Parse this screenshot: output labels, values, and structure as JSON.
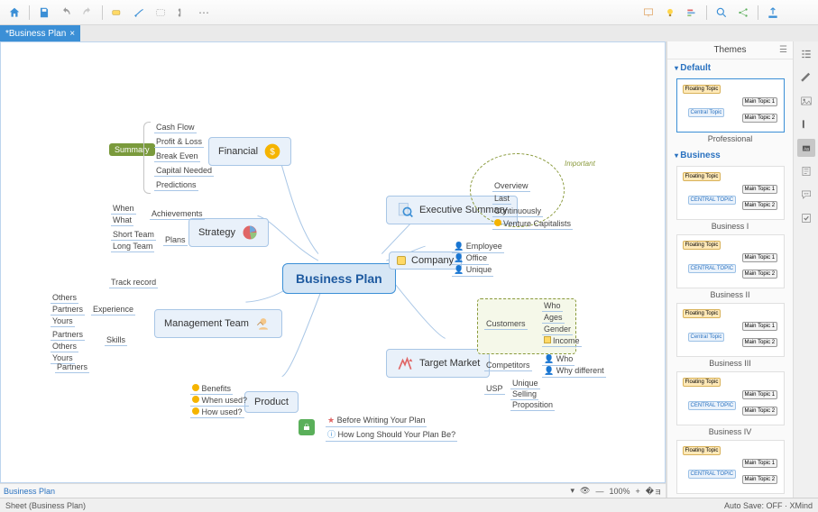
{
  "toolbar": {
    "home_icon": "home",
    "save_icon": "save",
    "undo_icon": "undo",
    "redo_icon": "redo",
    "insert_icon": "insert",
    "relation_icon": "relation",
    "boundary_icon": "boundary",
    "outline_icon": "outline",
    "more_icon": "more",
    "present_icon": "present",
    "idea_icon": "idea",
    "gantt_icon": "gantt",
    "search_icon": "search",
    "share_icon": "share",
    "export_icon": "export"
  },
  "file_tab": {
    "title": "*Business Plan",
    "close": "×"
  },
  "mindmap": {
    "central": "Business Plan",
    "summary_label": "Summary",
    "important_label": "Important",
    "branches": {
      "financial": {
        "label": "Financial",
        "leaves": [
          "Cash Flow",
          "Profit & Loss",
          "Break Even",
          "Capital Needed",
          "Predictions"
        ]
      },
      "strategy": {
        "label": "Strategy",
        "groups": {
          "achievements": "Achievements",
          "plans": "Plans"
        },
        "leaves_a": [
          "When",
          "What"
        ],
        "leaves_p": [
          "Short Team",
          "Long Team"
        ]
      },
      "management": {
        "label": "Management Team",
        "groups": {
          "trackrecord": "Track record",
          "experience": "Experience",
          "skills": "Skills"
        },
        "leaves_exp": [
          "Others",
          "Partners",
          "Yours"
        ],
        "leaves_sk": [
          "Partners",
          "Others",
          "Yours"
        ],
        "leaves_extra": [
          "Partners"
        ]
      },
      "product": {
        "label": "Product",
        "leaves": [
          "Benefits",
          "When used?",
          "How used?"
        ]
      },
      "executive": {
        "label": "Executive Summary",
        "leaves": [
          "Overview",
          "Last",
          "Continuously",
          "Venture Capitalists"
        ]
      },
      "company": {
        "label": "Company",
        "leaves": [
          "Employee",
          "Office",
          "Unique"
        ]
      },
      "target": {
        "label": "Target Market",
        "groups": {
          "customers": "Customers",
          "competitors": "Competitors",
          "usp": "USP"
        },
        "leaves_cust": [
          "Who",
          "Ages",
          "Gender",
          "Income"
        ],
        "leaves_comp": [
          "Who",
          "Why different"
        ],
        "leaves_usp": [
          "Unique",
          "Selling",
          "Proposition"
        ]
      }
    },
    "floating": [
      "Before Writing Your Plan",
      "How Long Should Your Plan Be?"
    ]
  },
  "canvas_footer": {
    "sheet_link": "Business Plan",
    "zoom": "100%"
  },
  "themes_panel": {
    "title": "Themes",
    "sections": [
      {
        "name": "Default",
        "items": [
          {
            "label": "Professional",
            "central": "Central Topic",
            "starred": true
          }
        ]
      },
      {
        "name": "Business",
        "items": [
          {
            "label": "Business I",
            "central": "CENTRAL TOPIC"
          },
          {
            "label": "Business II",
            "central": "CENTRAL TOPIC"
          },
          {
            "label": "Business III",
            "central": "Central Topic"
          },
          {
            "label": "Business IV",
            "central": "CENTRAL TOPIC"
          },
          {
            "label": "",
            "central": "CENTRAL TOPIC"
          }
        ]
      }
    ]
  },
  "rail": [
    "outline",
    "format",
    "image",
    "flag",
    "label",
    "note",
    "comment",
    "task"
  ],
  "status": {
    "left": "Sheet (Business Plan)",
    "right": "Auto Save: OFF    ·   XMind"
  },
  "colors": {
    "accent": "#3b8fd6",
    "branch_bg": "#e9f1fa",
    "branch_border": "#a8c6e6",
    "central_bg": "#d6e6f5",
    "olive": "#8a9a3c",
    "gold": "#f5b400"
  }
}
